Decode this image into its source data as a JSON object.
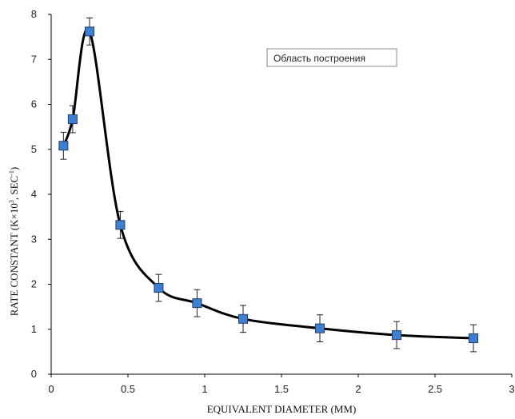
{
  "chart_data": {
    "type": "scatter",
    "xlabel": "EQUIVALENT DIAMETER (MM)",
    "ylabel_main": "RATE CONSTANT (K×10",
    "ylabel_exp1": "3",
    "ylabel_mid": ", SEC",
    "ylabel_exp2": "-1",
    "ylabel_end": ")",
    "xlim": [
      0,
      3
    ],
    "ylim": [
      0,
      8
    ],
    "x_ticks": [
      0,
      0.5,
      1,
      1.5,
      2,
      2.5,
      3
    ],
    "x_tick_labels": [
      "0",
      "0.5",
      "1",
      "1.5",
      "2",
      "2.5",
      "3"
    ],
    "y_ticks": [
      0,
      1,
      2,
      3,
      4,
      5,
      6,
      7,
      8
    ],
    "y_tick_labels": [
      "0",
      "1",
      "2",
      "3",
      "4",
      "5",
      "6",
      "7",
      "8"
    ],
    "grid": false,
    "marker": "square",
    "marker_color": "#3f7fcf",
    "line_color": "#000000",
    "series": [
      {
        "x": [
          0.08,
          0.14,
          0.25,
          0.45,
          0.7,
          0.95,
          1.25,
          1.75,
          2.25,
          2.75
        ],
        "y": [
          5.08,
          5.67,
          7.62,
          3.32,
          1.92,
          1.58,
          1.23,
          1.02,
          0.87,
          0.8
        ],
        "yerr": [
          0.3,
          0.3,
          0.3,
          0.3,
          0.3,
          0.3,
          0.3,
          0.3,
          0.3,
          0.3
        ]
      }
    ]
  },
  "tooltip": {
    "text": "Область построения"
  }
}
